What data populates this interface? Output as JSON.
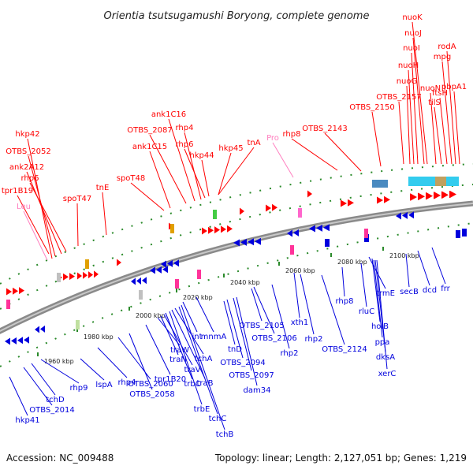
{
  "title": "Orientia tsutsugamushi Boryong, complete genome",
  "footer": {
    "accession": "Accession: NC_009488",
    "summary": "Topology: linear; Length: 2,127,051 bp; Genes: 1,219"
  },
  "colors": {
    "forward": "#ff0000",
    "reverse": "#0000dd",
    "rna_label": "#ff80c0",
    "track": "#2a8a2a"
  },
  "scale": {
    "ticks": [
      "1960 kbp",
      "1980 kbp",
      "2000 kbp",
      "2020 kbp",
      "2040 kbp",
      "2060 kbp",
      "2080 kbp",
      "2100 kbp"
    ]
  },
  "forward_labels": [
    "hkp42",
    "OTBS_2052",
    "ank2A12",
    "rhp6",
    "tpr1B19",
    "Leu",
    "spoT47",
    "tnE",
    "spoT48",
    "ank1C15",
    "OTBS_2087",
    "ank1C16",
    "rhp4",
    "rhp6",
    "hkp44",
    "hkp45",
    "tnA",
    "Pro",
    "rhp8",
    "OTBS_2143",
    "OTBS_2150",
    "OTBS_2157",
    "nuoG",
    "nuoH",
    "nuoI",
    "nuoJ",
    "nuoK",
    "nuoN",
    "tilS",
    "ftsH",
    "mpg",
    "rodA",
    "pbpA1"
  ],
  "reverse_labels": [
    "hkp41",
    "OTBS_2014",
    "tchD",
    "rhp9",
    "lspA",
    "rhp4",
    "OTBS_2060",
    "OTBS_2058",
    "tpr1B20",
    "traW",
    "traN",
    "traV",
    "trbC",
    "trbE",
    "traB",
    "tchA",
    "tchC",
    "tchB",
    "int",
    "mnmA",
    "tnD",
    "OTBS_2094",
    "OTBS_2097",
    "dam34",
    "OTBS_2105",
    "OTBS_2106",
    "rhp2",
    "xth1",
    "rhp2",
    "OTBS_2124",
    "rhp8",
    "rluC",
    "trmE",
    "holB",
    "ppa",
    "dksA",
    "xerC",
    "secB",
    "dcd",
    "frr"
  ]
}
